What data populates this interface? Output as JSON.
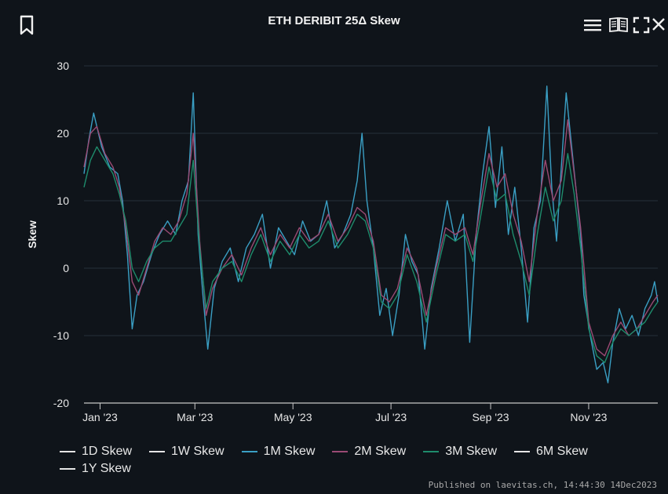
{
  "toolbar": {
    "bookmark_icon": "bookmark-icon",
    "menu_icon": "menu-icon",
    "docs_icon": "book-icon",
    "fullscreen_icon": "fullscreen-icon",
    "close_icon": "close-icon"
  },
  "published": "Published on laevitas.ch, 14:44:30 14Dec2023",
  "chart_data": {
    "type": "line",
    "title": "ETH DERIBIT 25Δ Skew",
    "xlabel": "",
    "ylabel": "Skew",
    "ylim": [
      -20,
      30
    ],
    "yticks": [
      30,
      20,
      10,
      0,
      -10,
      -20
    ],
    "xlim": [
      "2022-12-22",
      "2023-12-14"
    ],
    "xticks": [
      {
        "label": "Jan '23",
        "date": "2023-01-01"
      },
      {
        "label": "Mar '23",
        "date": "2023-03-01"
      },
      {
        "label": "May '23",
        "date": "2023-05-01"
      },
      {
        "label": "Jul '23",
        "date": "2023-07-01"
      },
      {
        "label": "Sep '23",
        "date": "2023-09-01"
      },
      {
        "label": "Nov '23",
        "date": "2023-11-01"
      }
    ],
    "grid": true,
    "legend_position": "bottom",
    "series": [
      {
        "name": "1D Skew",
        "color": "#e6e6e6",
        "visible": false,
        "points": []
      },
      {
        "name": "1W Skew",
        "color": "#e6e6e6",
        "visible": false,
        "points": []
      },
      {
        "name": "1M Skew",
        "color": "#3a9fc4",
        "visible": true,
        "points": [
          [
            "2022-12-22",
            14
          ],
          [
            "2022-12-25",
            19
          ],
          [
            "2022-12-28",
            23
          ],
          [
            "2023-01-02",
            18
          ],
          [
            "2023-01-07",
            15
          ],
          [
            "2023-01-12",
            14
          ],
          [
            "2023-01-15",
            10
          ],
          [
            "2023-01-18",
            2
          ],
          [
            "2023-01-21",
            -9
          ],
          [
            "2023-01-24",
            -4
          ],
          [
            "2023-01-28",
            -2
          ],
          [
            "2023-02-02",
            2
          ],
          [
            "2023-02-07",
            5
          ],
          [
            "2023-02-12",
            7
          ],
          [
            "2023-02-17",
            5
          ],
          [
            "2023-02-21",
            10
          ],
          [
            "2023-02-25",
            13
          ],
          [
            "2023-02-28",
            26
          ],
          [
            "2023-03-03",
            5
          ],
          [
            "2023-03-06",
            -4
          ],
          [
            "2023-03-09",
            -12
          ],
          [
            "2023-03-13",
            -3
          ],
          [
            "2023-03-18",
            1
          ],
          [
            "2023-03-23",
            3
          ],
          [
            "2023-03-28",
            -2
          ],
          [
            "2023-04-02",
            3
          ],
          [
            "2023-04-07",
            5
          ],
          [
            "2023-04-12",
            8
          ],
          [
            "2023-04-17",
            0
          ],
          [
            "2023-04-22",
            6
          ],
          [
            "2023-04-27",
            4
          ],
          [
            "2023-05-02",
            2
          ],
          [
            "2023-05-07",
            7
          ],
          [
            "2023-05-12",
            4
          ],
          [
            "2023-05-17",
            5
          ],
          [
            "2023-05-22",
            10
          ],
          [
            "2023-05-27",
            3
          ],
          [
            "2023-06-01",
            5
          ],
          [
            "2023-06-06",
            8
          ],
          [
            "2023-06-10",
            13
          ],
          [
            "2023-06-13",
            20
          ],
          [
            "2023-06-16",
            10
          ],
          [
            "2023-06-20",
            3
          ],
          [
            "2023-06-24",
            -7
          ],
          [
            "2023-06-28",
            -3
          ],
          [
            "2023-07-02",
            -10
          ],
          [
            "2023-07-06",
            -4
          ],
          [
            "2023-07-10",
            5
          ],
          [
            "2023-07-14",
            1
          ],
          [
            "2023-07-18",
            -1
          ],
          [
            "2023-07-22",
            -12
          ],
          [
            "2023-07-26",
            -3
          ],
          [
            "2023-07-31",
            3
          ],
          [
            "2023-08-05",
            10
          ],
          [
            "2023-08-10",
            4
          ],
          [
            "2023-08-15",
            8
          ],
          [
            "2023-08-19",
            -11
          ],
          [
            "2023-08-23",
            5
          ],
          [
            "2023-08-27",
            14
          ],
          [
            "2023-08-31",
            21
          ],
          [
            "2023-09-04",
            9
          ],
          [
            "2023-09-08",
            18
          ],
          [
            "2023-09-12",
            5
          ],
          [
            "2023-09-16",
            12
          ],
          [
            "2023-09-20",
            3
          ],
          [
            "2023-09-24",
            -8
          ],
          [
            "2023-09-28",
            6
          ],
          [
            "2023-10-02",
            10
          ],
          [
            "2023-10-06",
            27
          ],
          [
            "2023-10-09",
            12
          ],
          [
            "2023-10-12",
            4
          ],
          [
            "2023-10-15",
            15
          ],
          [
            "2023-10-18",
            26
          ],
          [
            "2023-10-21",
            19
          ],
          [
            "2023-10-24",
            12
          ],
          [
            "2023-10-27",
            5
          ],
          [
            "2023-10-29",
            -4
          ],
          [
            "2023-11-02",
            -10
          ],
          [
            "2023-11-06",
            -15
          ],
          [
            "2023-11-10",
            -14
          ],
          [
            "2023-11-13",
            -17
          ],
          [
            "2023-11-16",
            -11
          ],
          [
            "2023-11-20",
            -6
          ],
          [
            "2023-11-24",
            -9
          ],
          [
            "2023-11-28",
            -7
          ],
          [
            "2023-12-02",
            -10
          ],
          [
            "2023-12-06",
            -6
          ],
          [
            "2023-12-10",
            -4
          ],
          [
            "2023-12-12",
            -2
          ],
          [
            "2023-12-14",
            -5
          ]
        ]
      },
      {
        "name": "2M Skew",
        "color": "#9a4a74",
        "visible": true,
        "points": [
          [
            "2022-12-22",
            15
          ],
          [
            "2022-12-26",
            20
          ],
          [
            "2022-12-30",
            21
          ],
          [
            "2023-01-04",
            17
          ],
          [
            "2023-01-09",
            15
          ],
          [
            "2023-01-13",
            12
          ],
          [
            "2023-01-17",
            6
          ],
          [
            "2023-01-21",
            -2
          ],
          [
            "2023-01-25",
            -4
          ],
          [
            "2023-01-30",
            0
          ],
          [
            "2023-02-04",
            4
          ],
          [
            "2023-02-09",
            6
          ],
          [
            "2023-02-14",
            5
          ],
          [
            "2023-02-19",
            7
          ],
          [
            "2023-02-24",
            11
          ],
          [
            "2023-02-28",
            20
          ],
          [
            "2023-03-04",
            4
          ],
          [
            "2023-03-08",
            -7
          ],
          [
            "2023-03-12",
            -3
          ],
          [
            "2023-03-18",
            0
          ],
          [
            "2023-03-24",
            2
          ],
          [
            "2023-03-30",
            -1
          ],
          [
            "2023-04-05",
            3
          ],
          [
            "2023-04-11",
            6
          ],
          [
            "2023-04-17",
            2
          ],
          [
            "2023-04-23",
            5
          ],
          [
            "2023-04-29",
            3
          ],
          [
            "2023-05-05",
            6
          ],
          [
            "2023-05-11",
            4
          ],
          [
            "2023-05-17",
            5
          ],
          [
            "2023-05-23",
            8
          ],
          [
            "2023-05-29",
            4
          ],
          [
            "2023-06-04",
            6
          ],
          [
            "2023-06-10",
            9
          ],
          [
            "2023-06-15",
            8
          ],
          [
            "2023-06-20",
            4
          ],
          [
            "2023-06-25",
            -4
          ],
          [
            "2023-06-30",
            -5
          ],
          [
            "2023-07-05",
            -3
          ],
          [
            "2023-07-11",
            3
          ],
          [
            "2023-07-17",
            0
          ],
          [
            "2023-07-23",
            -7
          ],
          [
            "2023-07-29",
            0
          ],
          [
            "2023-08-04",
            6
          ],
          [
            "2023-08-10",
            5
          ],
          [
            "2023-08-16",
            6
          ],
          [
            "2023-08-21",
            2
          ],
          [
            "2023-08-26",
            10
          ],
          [
            "2023-08-31",
            17
          ],
          [
            "2023-09-05",
            12
          ],
          [
            "2023-09-10",
            14
          ],
          [
            "2023-09-15",
            8
          ],
          [
            "2023-09-20",
            4
          ],
          [
            "2023-09-25",
            -2
          ],
          [
            "2023-09-30",
            8
          ],
          [
            "2023-10-05",
            16
          ],
          [
            "2023-10-10",
            10
          ],
          [
            "2023-10-15",
            13
          ],
          [
            "2023-10-19",
            22
          ],
          [
            "2023-10-23",
            14
          ],
          [
            "2023-10-27",
            6
          ],
          [
            "2023-11-01",
            -8
          ],
          [
            "2023-11-06",
            -12
          ],
          [
            "2023-11-11",
            -13
          ],
          [
            "2023-11-16",
            -10
          ],
          [
            "2023-11-21",
            -8
          ],
          [
            "2023-11-26",
            -10
          ],
          [
            "2023-12-01",
            -9
          ],
          [
            "2023-12-06",
            -7
          ],
          [
            "2023-12-11",
            -5
          ],
          [
            "2023-12-14",
            -4
          ]
        ]
      },
      {
        "name": "3M Skew",
        "color": "#1e8c6c",
        "visible": true,
        "points": [
          [
            "2022-12-22",
            12
          ],
          [
            "2022-12-26",
            16
          ],
          [
            "2022-12-30",
            18
          ],
          [
            "2023-01-04",
            16
          ],
          [
            "2023-01-09",
            14
          ],
          [
            "2023-01-13",
            11
          ],
          [
            "2023-01-17",
            7
          ],
          [
            "2023-01-21",
            0
          ],
          [
            "2023-01-25",
            -2
          ],
          [
            "2023-01-30",
            1
          ],
          [
            "2023-02-04",
            3
          ],
          [
            "2023-02-09",
            4
          ],
          [
            "2023-02-14",
            4
          ],
          [
            "2023-02-19",
            6
          ],
          [
            "2023-02-24",
            8
          ],
          [
            "2023-02-28",
            16
          ],
          [
            "2023-03-04",
            3
          ],
          [
            "2023-03-08",
            -6
          ],
          [
            "2023-03-12",
            -2
          ],
          [
            "2023-03-18",
            0
          ],
          [
            "2023-03-24",
            1
          ],
          [
            "2023-03-30",
            -2
          ],
          [
            "2023-04-05",
            2
          ],
          [
            "2023-04-11",
            5
          ],
          [
            "2023-04-17",
            1
          ],
          [
            "2023-04-23",
            4
          ],
          [
            "2023-04-29",
            2
          ],
          [
            "2023-05-05",
            5
          ],
          [
            "2023-05-11",
            3
          ],
          [
            "2023-05-17",
            4
          ],
          [
            "2023-05-23",
            7
          ],
          [
            "2023-05-29",
            3
          ],
          [
            "2023-06-04",
            5
          ],
          [
            "2023-06-10",
            8
          ],
          [
            "2023-06-15",
            7
          ],
          [
            "2023-06-20",
            3
          ],
          [
            "2023-06-25",
            -5
          ],
          [
            "2023-06-30",
            -6
          ],
          [
            "2023-07-05",
            -4
          ],
          [
            "2023-07-11",
            2
          ],
          [
            "2023-07-17",
            -2
          ],
          [
            "2023-07-23",
            -8
          ],
          [
            "2023-07-29",
            -1
          ],
          [
            "2023-08-04",
            5
          ],
          [
            "2023-08-10",
            4
          ],
          [
            "2023-08-16",
            5
          ],
          [
            "2023-08-21",
            1
          ],
          [
            "2023-08-26",
            8
          ],
          [
            "2023-08-31",
            15
          ],
          [
            "2023-09-05",
            10
          ],
          [
            "2023-09-10",
            11
          ],
          [
            "2023-09-15",
            5
          ],
          [
            "2023-09-20",
            1
          ],
          [
            "2023-09-25",
            -4
          ],
          [
            "2023-09-30",
            5
          ],
          [
            "2023-10-05",
            12
          ],
          [
            "2023-10-10",
            7
          ],
          [
            "2023-10-15",
            10
          ],
          [
            "2023-10-19",
            17
          ],
          [
            "2023-10-23",
            11
          ],
          [
            "2023-10-27",
            3
          ],
          [
            "2023-11-01",
            -9
          ],
          [
            "2023-11-06",
            -13
          ],
          [
            "2023-11-11",
            -14
          ],
          [
            "2023-11-16",
            -11
          ],
          [
            "2023-11-21",
            -9
          ],
          [
            "2023-11-26",
            -10
          ],
          [
            "2023-12-01",
            -9
          ],
          [
            "2023-12-06",
            -8
          ],
          [
            "2023-12-11",
            -6
          ],
          [
            "2023-12-14",
            -5
          ]
        ]
      },
      {
        "name": "6M Skew",
        "color": "#e6e6e6",
        "visible": false,
        "points": []
      },
      {
        "name": "1Y Skew",
        "color": "#e6e6e6",
        "visible": false,
        "points": []
      }
    ]
  }
}
